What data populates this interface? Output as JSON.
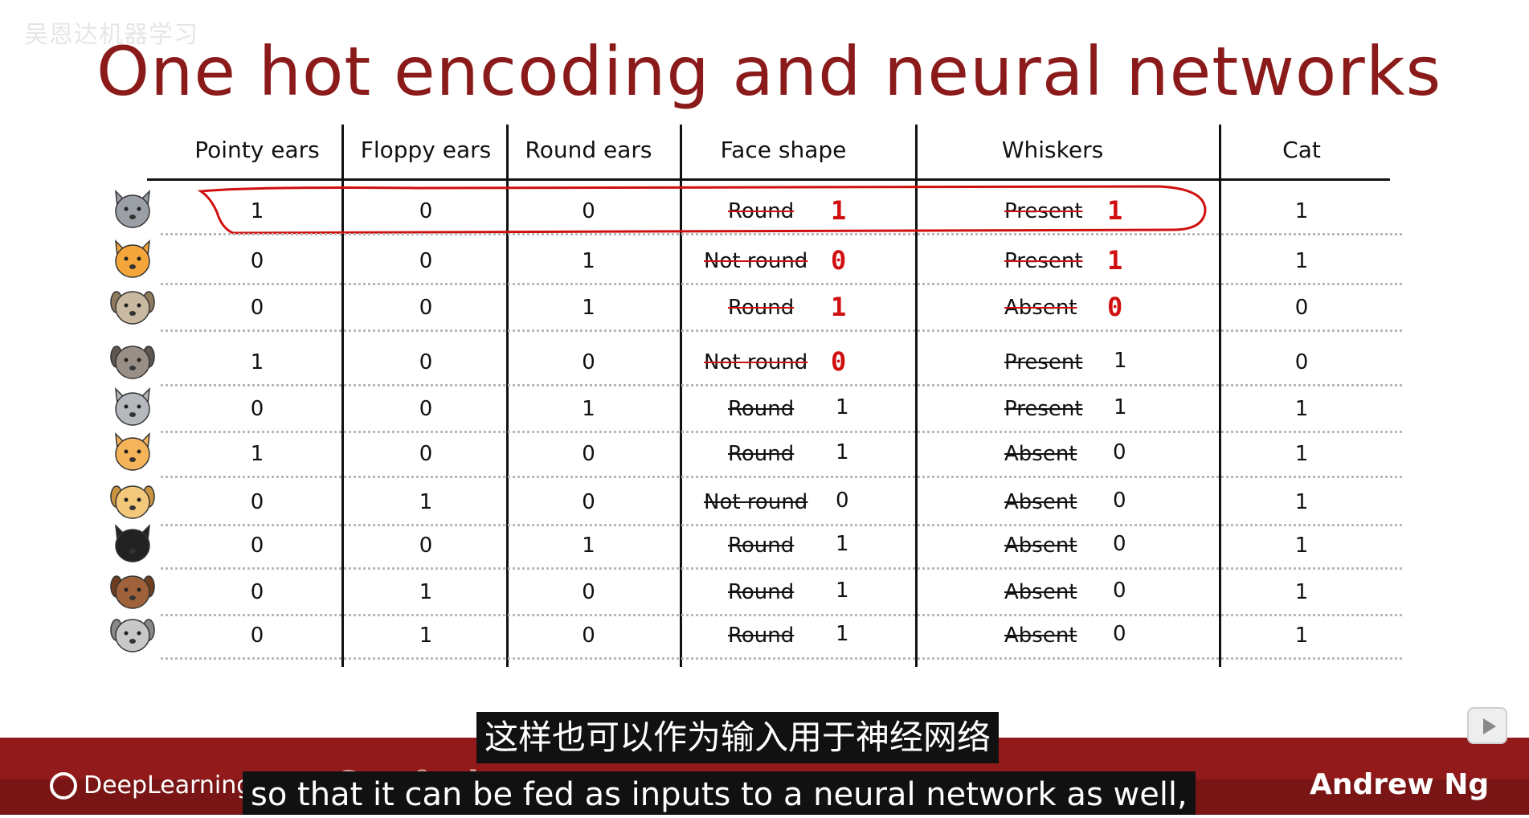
{
  "watermark": "吴恩达机器学习",
  "title": "One hot encoding and neural networks",
  "headers": [
    "Pointy ears",
    "Floppy ears",
    "Round ears",
    "Face shape",
    "Whiskers",
    "Cat"
  ],
  "rows": [
    {
      "animal": "cat-gray",
      "pointy": "1",
      "floppy": "0",
      "round": "0",
      "face": "Round",
      "face_num": "1",
      "face_red": true,
      "whiskers": "Present",
      "whiskers_num": "1",
      "whiskers_red": true,
      "cat": "1"
    },
    {
      "animal": "cat-orange",
      "pointy": "0",
      "floppy": "0",
      "round": "1",
      "face": "Not round",
      "face_num": "0",
      "face_red": true,
      "whiskers": "Present",
      "whiskers_num": "1",
      "whiskers_red": true,
      "cat": "1"
    },
    {
      "animal": "dog-pug",
      "pointy": "0",
      "floppy": "0",
      "round": "1",
      "face": "Round",
      "face_num": "1",
      "face_red": true,
      "whiskers": "Absent",
      "whiskers_num": "0",
      "whiskers_red": true,
      "cat": "0"
    },
    {
      "animal": "dog-wolf",
      "pointy": "1",
      "floppy": "0",
      "round": "0",
      "face": "Not round",
      "face_num": "0",
      "face_red": true,
      "whiskers": "Present",
      "whiskers_num": "1",
      "whiskers_red": false,
      "cat": "0"
    },
    {
      "animal": "cat-gray-2",
      "pointy": "0",
      "floppy": "0",
      "round": "1",
      "face": "Round",
      "face_num": "1",
      "face_red": false,
      "whiskers": "Present",
      "whiskers_num": "1",
      "whiskers_red": false,
      "cat": "1"
    },
    {
      "animal": "cat-orange-2",
      "pointy": "1",
      "floppy": "0",
      "round": "0",
      "face": "Round",
      "face_num": "1",
      "face_red": false,
      "whiskers": "Absent",
      "whiskers_num": "0",
      "whiskers_red": false,
      "cat": "1"
    },
    {
      "animal": "dog-yellow",
      "pointy": "0",
      "floppy": "1",
      "round": "0",
      "face": "Not round",
      "face_num": "0",
      "face_red": false,
      "whiskers": "Absent",
      "whiskers_num": "0",
      "whiskers_red": false,
      "cat": "1"
    },
    {
      "animal": "cat-tuxedo",
      "pointy": "0",
      "floppy": "0",
      "round": "1",
      "face": "Round",
      "face_num": "1",
      "face_red": false,
      "whiskers": "Absent",
      "whiskers_num": "0",
      "whiskers_red": false,
      "cat": "1"
    },
    {
      "animal": "dog-brown",
      "pointy": "0",
      "floppy": "1",
      "round": "0",
      "face": "Round",
      "face_num": "1",
      "face_red": false,
      "whiskers": "Absent",
      "whiskers_num": "0",
      "whiskers_red": false,
      "cat": "1"
    },
    {
      "animal": "dog-gray",
      "pointy": "0",
      "floppy": "1",
      "round": "0",
      "face": "Round",
      "face_num": "1",
      "face_red": false,
      "whiskers": "Absent",
      "whiskers_num": "0",
      "whiskers_red": false,
      "cat": "1"
    }
  ],
  "footer": {
    "deeplearning_logo": "DeepLearning.AI",
    "stanford_logo": "Stanford",
    "presenter": "Andrew Ng"
  },
  "subtitles": {
    "chinese": "这样也可以作为输入用于神经网络",
    "english": "so that it can be fed as inputs to a neural network as well,"
  },
  "colors": {
    "title": "#8b1a1a",
    "annotation_red": "#d01010",
    "footer_bar": "#931a1a"
  },
  "icons": {
    "play_button": "play-icon"
  }
}
